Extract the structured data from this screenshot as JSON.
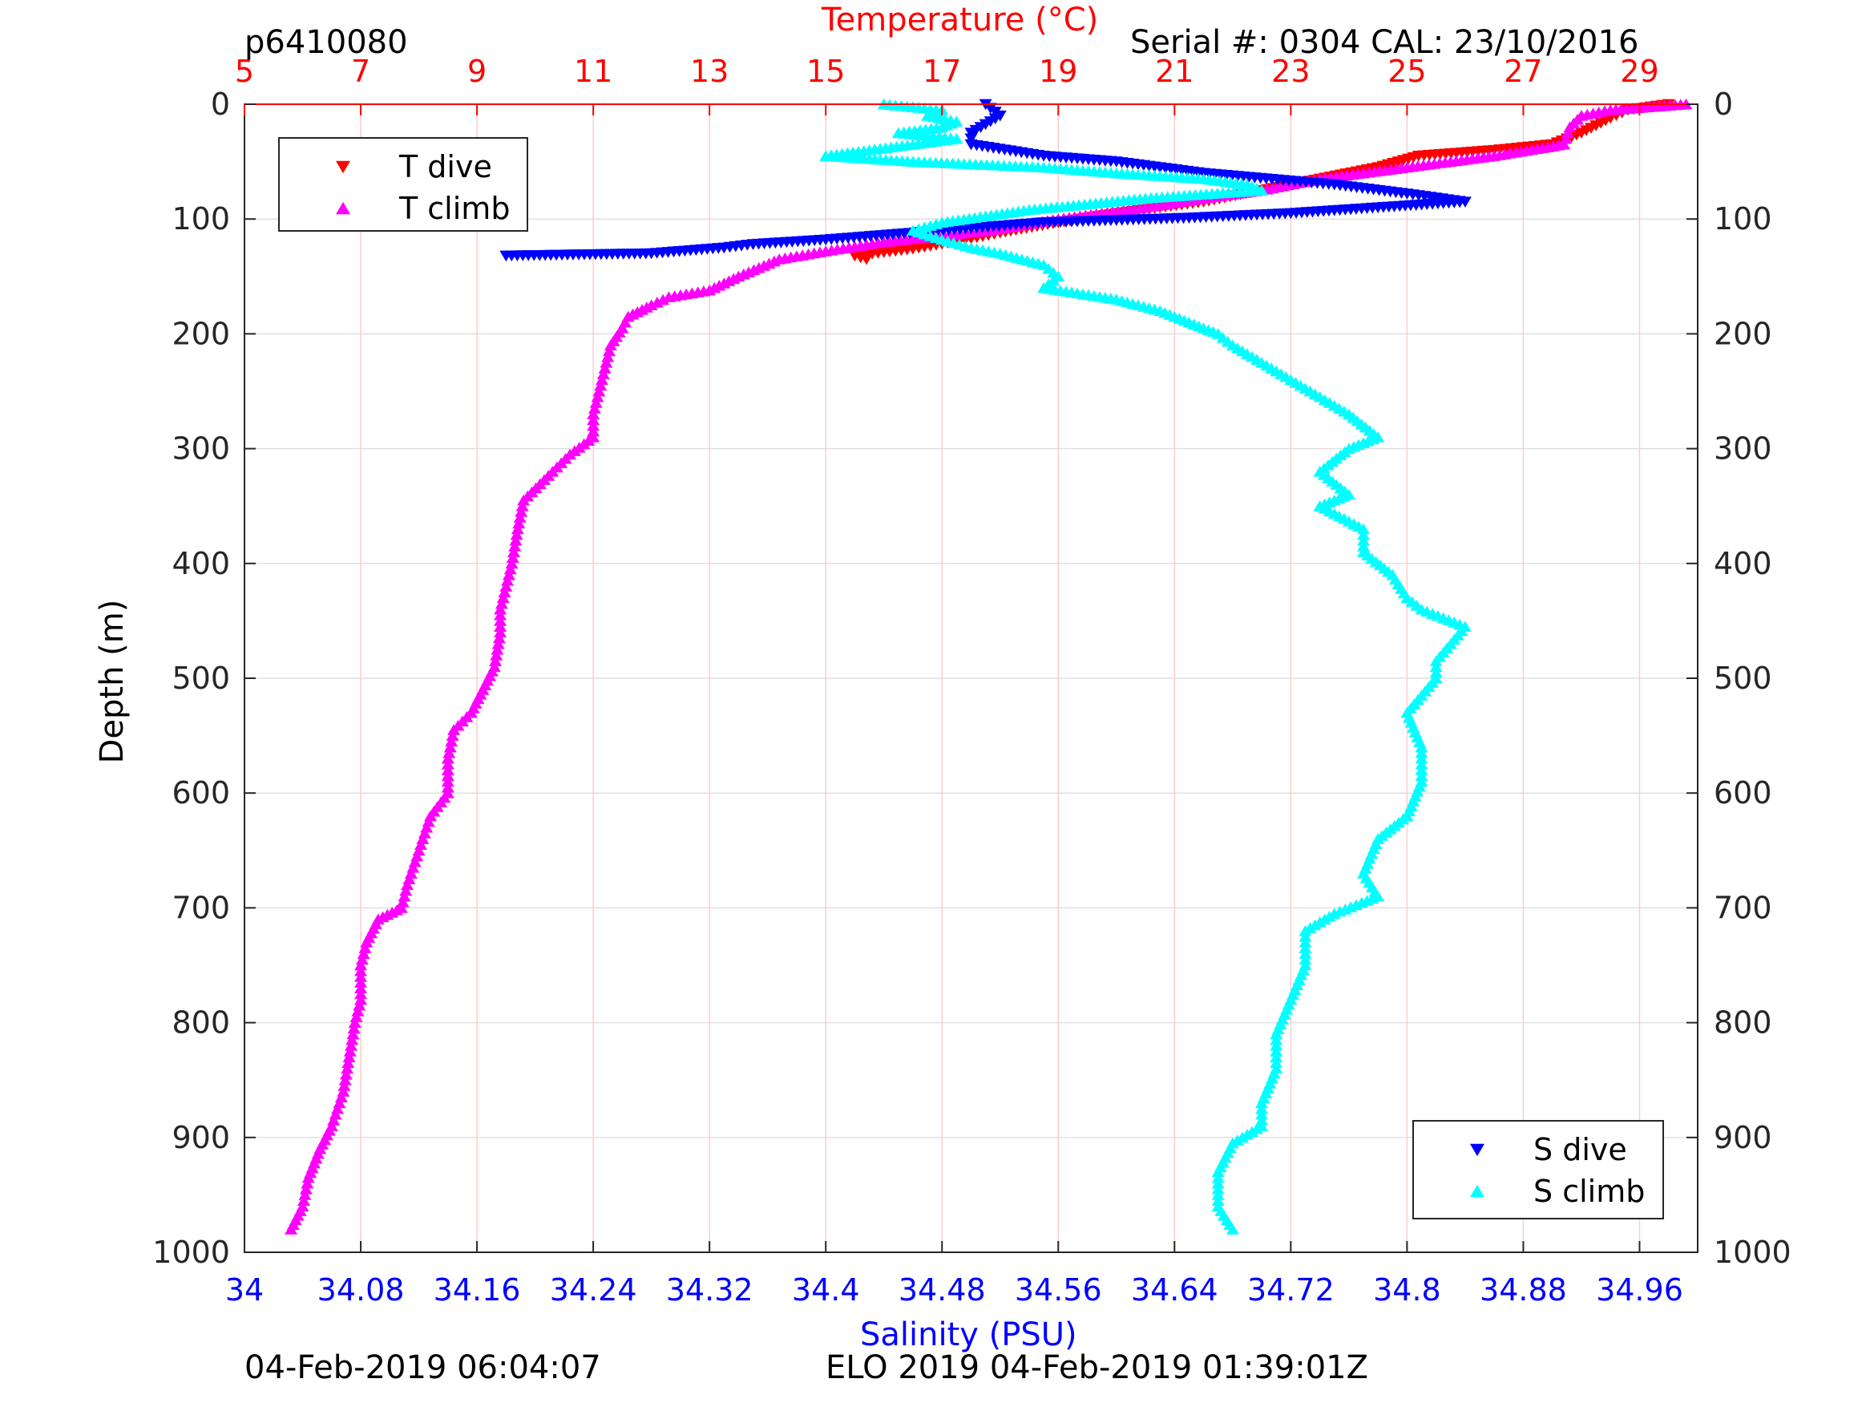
{
  "header": {
    "profile_id": "p6410080",
    "serial": "Serial #: 0304  CAL: 23/10/2016"
  },
  "footer": {
    "left_timestamp": "04-Feb-2019 06:04:07",
    "mission": "ELO 2019 04-Feb-2019 01:39:01Z"
  },
  "colors": {
    "t_dive": "#ff0000",
    "t_climb": "#ff00ff",
    "s_dive": "#0000ff",
    "s_climb": "#00ffff",
    "temp_axis": "#ff0000",
    "sal_axis": "#0000ff",
    "grid": "#ffcccc"
  },
  "chart_data": {
    "type": "scatter",
    "ylabel": "Depth (m)",
    "ylim": [
      0,
      1000
    ],
    "y_reversed": true,
    "y_ticks": [
      0,
      100,
      200,
      300,
      400,
      500,
      600,
      700,
      800,
      900,
      1000
    ],
    "x_top": {
      "label": "Temperature (°C)",
      "lim": [
        5,
        30
      ],
      "ticks": [
        5,
        7,
        9,
        11,
        13,
        15,
        17,
        19,
        21,
        23,
        25,
        27,
        29
      ]
    },
    "x_bottom": {
      "label": "Salinity (PSU)",
      "lim": [
        34,
        35
      ],
      "ticks": [
        "34",
        "34.08",
        "34.16",
        "34.24",
        "34.32",
        "34.4",
        "34.48",
        "34.56",
        "34.64",
        "34.72",
        "34.8",
        "34.88",
        "34.96"
      ]
    },
    "grid": true,
    "legends": [
      {
        "placement": "top-left",
        "entries": [
          "T dive",
          "T climb"
        ]
      },
      {
        "placement": "bottom-right",
        "entries": [
          "S dive",
          "S climb"
        ]
      }
    ],
    "series": [
      {
        "name": "T dive",
        "axis": "temperature",
        "marker": "triangle-down",
        "points": [
          [
            29.5,
            0
          ],
          [
            28.8,
            5
          ],
          [
            28.5,
            12
          ],
          [
            28,
            25
          ],
          [
            27.5,
            35
          ],
          [
            26.5,
            40
          ],
          [
            25.2,
            45
          ],
          [
            24.5,
            55
          ],
          [
            23.5,
            65
          ],
          [
            22.5,
            75
          ],
          [
            21.5,
            85
          ],
          [
            20,
            95
          ],
          [
            19,
            103
          ],
          [
            18,
            112
          ],
          [
            17.2,
            120
          ],
          [
            16.5,
            126
          ],
          [
            15.5,
            132
          ],
          [
            15.7,
            135
          ]
        ]
      },
      {
        "name": "T climb",
        "axis": "temperature",
        "marker": "triangle-up",
        "points": [
          [
            29.8,
            0
          ],
          [
            28.5,
            5
          ],
          [
            28,
            10
          ],
          [
            27.8,
            20
          ],
          [
            27.7,
            35
          ],
          [
            26.5,
            45
          ],
          [
            25,
            55
          ],
          [
            23.5,
            65
          ],
          [
            22.5,
            75
          ],
          [
            21.5,
            82
          ],
          [
            20.5,
            90
          ],
          [
            19,
            100
          ],
          [
            17.8,
            110
          ],
          [
            16,
            120
          ],
          [
            15,
            128
          ],
          [
            14.2,
            135
          ],
          [
            13.5,
            150
          ],
          [
            13,
            162
          ],
          [
            12.3,
            168
          ],
          [
            12,
            175
          ],
          [
            11.6,
            185
          ],
          [
            11.5,
            195
          ],
          [
            11.3,
            210
          ],
          [
            11.2,
            230
          ],
          [
            11.1,
            250
          ],
          [
            11,
            270
          ],
          [
            11,
            290
          ],
          [
            10.6,
            305
          ],
          [
            10.3,
            320
          ],
          [
            9.8,
            345
          ],
          [
            9.7,
            370
          ],
          [
            9.6,
            400
          ],
          [
            9.5,
            420
          ],
          [
            9.4,
            440
          ],
          [
            9.4,
            460
          ],
          [
            9.3,
            490
          ],
          [
            9.1,
            510
          ],
          [
            8.9,
            530
          ],
          [
            8.6,
            545
          ],
          [
            8.5,
            570
          ],
          [
            8.5,
            600
          ],
          [
            8.2,
            620
          ],
          [
            8,
            650
          ],
          [
            7.8,
            680
          ],
          [
            7.7,
            700
          ],
          [
            7.3,
            710
          ],
          [
            7.1,
            730
          ],
          [
            7,
            750
          ],
          [
            7,
            780
          ],
          [
            6.9,
            800
          ],
          [
            6.8,
            830
          ],
          [
            6.7,
            860
          ],
          [
            6.5,
            890
          ],
          [
            6.3,
            910
          ],
          [
            6.1,
            935
          ],
          [
            6,
            960
          ],
          [
            5.8,
            980
          ]
        ]
      },
      {
        "name": "S dive",
        "axis": "salinity",
        "marker": "triangle-down",
        "points": [
          [
            34.51,
            0
          ],
          [
            34.52,
            10
          ],
          [
            34.5,
            25
          ],
          [
            34.5,
            35
          ],
          [
            34.55,
            45
          ],
          [
            34.6,
            50
          ],
          [
            34.66,
            60
          ],
          [
            34.75,
            70
          ],
          [
            34.8,
            78
          ],
          [
            34.84,
            85
          ],
          [
            34.78,
            90
          ],
          [
            34.72,
            95
          ],
          [
            34.65,
            99
          ],
          [
            34.55,
            103
          ],
          [
            34.5,
            108
          ],
          [
            34.45,
            113
          ],
          [
            34.4,
            118
          ],
          [
            34.35,
            122
          ],
          [
            34.33,
            125
          ],
          [
            34.28,
            130
          ],
          [
            34.18,
            132
          ]
        ]
      },
      {
        "name": "S climb",
        "axis": "salinity",
        "marker": "triangle-up",
        "points": [
          [
            34.44,
            0
          ],
          [
            34.48,
            5
          ],
          [
            34.47,
            10
          ],
          [
            34.49,
            15
          ],
          [
            34.48,
            20
          ],
          [
            34.45,
            25
          ],
          [
            34.49,
            30
          ],
          [
            34.46,
            35
          ],
          [
            34.4,
            45
          ],
          [
            34.46,
            50
          ],
          [
            34.55,
            55
          ],
          [
            34.6,
            60
          ],
          [
            34.66,
            65
          ],
          [
            34.69,
            70
          ],
          [
            34.7,
            75
          ],
          [
            34.62,
            82
          ],
          [
            34.54,
            92
          ],
          [
            34.48,
            103
          ],
          [
            34.46,
            110
          ],
          [
            34.48,
            118
          ],
          [
            34.5,
            125
          ],
          [
            34.52,
            130
          ],
          [
            34.55,
            140
          ],
          [
            34.56,
            150
          ],
          [
            34.55,
            160
          ],
          [
            34.6,
            170
          ],
          [
            34.63,
            180
          ],
          [
            34.65,
            190
          ],
          [
            34.67,
            200
          ],
          [
            34.68,
            210
          ],
          [
            34.7,
            225
          ],
          [
            34.72,
            240
          ],
          [
            34.74,
            255
          ],
          [
            34.76,
            270
          ],
          [
            34.78,
            290
          ],
          [
            34.76,
            300
          ],
          [
            34.74,
            320
          ],
          [
            34.76,
            340
          ],
          [
            34.74,
            350
          ],
          [
            34.77,
            370
          ],
          [
            34.77,
            390
          ],
          [
            34.79,
            410
          ],
          [
            34.8,
            430
          ],
          [
            34.81,
            440
          ],
          [
            34.84,
            455
          ],
          [
            34.83,
            470
          ],
          [
            34.82,
            485
          ],
          [
            34.82,
            500
          ],
          [
            34.8,
            530
          ],
          [
            34.81,
            560
          ],
          [
            34.81,
            590
          ],
          [
            34.8,
            620
          ],
          [
            34.78,
            640
          ],
          [
            34.77,
            670
          ],
          [
            34.78,
            690
          ],
          [
            34.75,
            705
          ],
          [
            34.73,
            720
          ],
          [
            34.73,
            750
          ],
          [
            34.72,
            780
          ],
          [
            34.71,
            810
          ],
          [
            34.71,
            840
          ],
          [
            34.7,
            870
          ],
          [
            34.7,
            890
          ],
          [
            34.68,
            905
          ],
          [
            34.67,
            930
          ],
          [
            34.67,
            960
          ],
          [
            34.68,
            980
          ]
        ]
      }
    ]
  }
}
